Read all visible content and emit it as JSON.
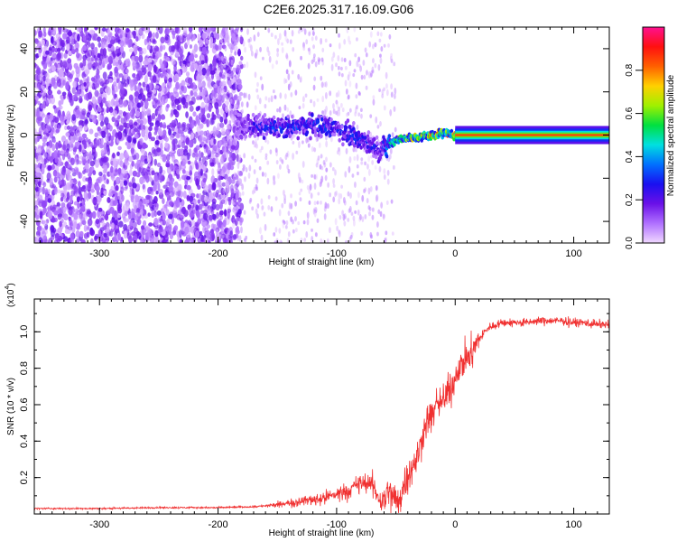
{
  "figure_title": "C2E6.2025.317.16.09.G06",
  "chart_data": [
    {
      "type": "heatmap",
      "title": "C2E6.2025.317.16.09.G06",
      "xlabel": "Height of straight line (km)",
      "ylabel": "Frequency (Hz)",
      "xlim": [
        -355,
        130
      ],
      "ylim": [
        -50,
        50
      ],
      "x_ticks": [
        -300,
        -200,
        -100,
        0,
        100
      ],
      "x_tick_labels": [
        "-300",
        "-200",
        "-100",
        "0",
        "100"
      ],
      "y_ticks": [
        -40,
        -20,
        0,
        20,
        40
      ],
      "y_tick_labels": [
        "-40",
        "-20",
        "0",
        "20",
        "40"
      ],
      "colorbar": {
        "label": "Normalized spectral amplitude",
        "range": [
          0,
          1
        ],
        "ticks": [
          0.0,
          0.2,
          0.4,
          0.6,
          0.8
        ],
        "tick_labels": [
          "0.0",
          "0.2",
          "0.4",
          "0.6",
          "0.8"
        ],
        "colormap": [
          "#f0d8ff",
          "#b070ff",
          "#6a10e8",
          "#1a10f0",
          "#0070ff",
          "#00e0e0",
          "#00e040",
          "#a0f000",
          "#ffd000",
          "#ff6000",
          "#ff1010",
          "#ff1090"
        ]
      },
      "signal_track": [
        {
          "x": -185,
          "freq": 4,
          "amp": 0.18
        },
        {
          "x": -160,
          "freq": 4,
          "amp": 0.32
        },
        {
          "x": -140,
          "freq": 3,
          "amp": 0.34
        },
        {
          "x": -120,
          "freq": 5,
          "amp": 0.33
        },
        {
          "x": -100,
          "freq": 3,
          "amp": 0.32
        },
        {
          "x": -80,
          "freq": -2,
          "amp": 0.3
        },
        {
          "x": -62,
          "freq": -7,
          "amp": 0.28
        },
        {
          "x": -50,
          "freq": -2,
          "amp": 0.65
        },
        {
          "x": -30,
          "freq": -1,
          "amp": 0.75
        },
        {
          "x": -10,
          "freq": 1,
          "amp": 0.8
        },
        {
          "x": 0,
          "freq": 0,
          "amp": 0.95
        },
        {
          "x": 130,
          "freq": 0,
          "amp": 0.95
        }
      ]
    },
    {
      "type": "line",
      "title": "",
      "xlabel": "Height of straight line (km)",
      "ylabel": "SNR (10 * v/v)",
      "scale_label": "(x10",
      "scale_exp": "4",
      "scale_close": ")",
      "color": "#f03030",
      "xlim": [
        -355,
        130
      ],
      "ylim": [
        0,
        1.18
      ],
      "x_ticks": [
        -300,
        -200,
        -100,
        0,
        100
      ],
      "x_tick_labels": [
        "-300",
        "-200",
        "-100",
        "0",
        "100"
      ],
      "y_ticks": [
        0.2,
        0.4,
        0.6,
        0.8,
        1.0
      ],
      "y_tick_labels": [
        "0.2",
        "0.4",
        "0.6",
        "0.8",
        "1.0"
      ],
      "series": [
        {
          "name": "SNR",
          "x": [
            -355,
            -300,
            -250,
            -200,
            -170,
            -150,
            -130,
            -110,
            -100,
            -90,
            -80,
            -70,
            -62,
            -58,
            -52,
            -48,
            -44,
            -40,
            -36,
            -32,
            -28,
            -24,
            -20,
            -15,
            -10,
            -5,
            0,
            5,
            10,
            15,
            20,
            25,
            30,
            40,
            50,
            60,
            70,
            80,
            90,
            100,
            110,
            120,
            130
          ],
          "values": [
            0.03,
            0.03,
            0.035,
            0.035,
            0.04,
            0.05,
            0.07,
            0.09,
            0.11,
            0.13,
            0.17,
            0.16,
            0.06,
            0.12,
            0.1,
            0.05,
            0.15,
            0.22,
            0.25,
            0.3,
            0.42,
            0.5,
            0.55,
            0.6,
            0.62,
            0.68,
            0.75,
            0.82,
            0.86,
            0.9,
            0.96,
            1.0,
            1.03,
            1.05,
            1.05,
            1.05,
            1.06,
            1.06,
            1.06,
            1.05,
            1.05,
            1.04,
            1.04
          ]
        }
      ]
    }
  ]
}
